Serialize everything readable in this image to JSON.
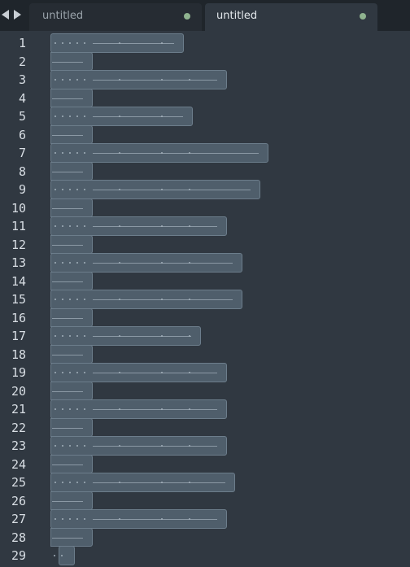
{
  "tabs": [
    {
      "label": "untitled",
      "active": false,
      "dirty": true
    },
    {
      "label": "untitled",
      "active": true,
      "dirty": true
    }
  ],
  "editor": {
    "line_numbers": [
      "1",
      "2",
      "3",
      "4",
      "5",
      "6",
      "7",
      "8",
      "9",
      "10",
      "11",
      "12",
      "13",
      "14",
      "15",
      "16",
      "17",
      "18",
      "19",
      "20",
      "21",
      "22",
      "23",
      "24",
      "25",
      "26",
      "27",
      "28",
      "29"
    ]
  },
  "colors": {
    "background": "#303841",
    "selection": "#4f5e6b",
    "dirty_indicator": "#8fb38f"
  }
}
